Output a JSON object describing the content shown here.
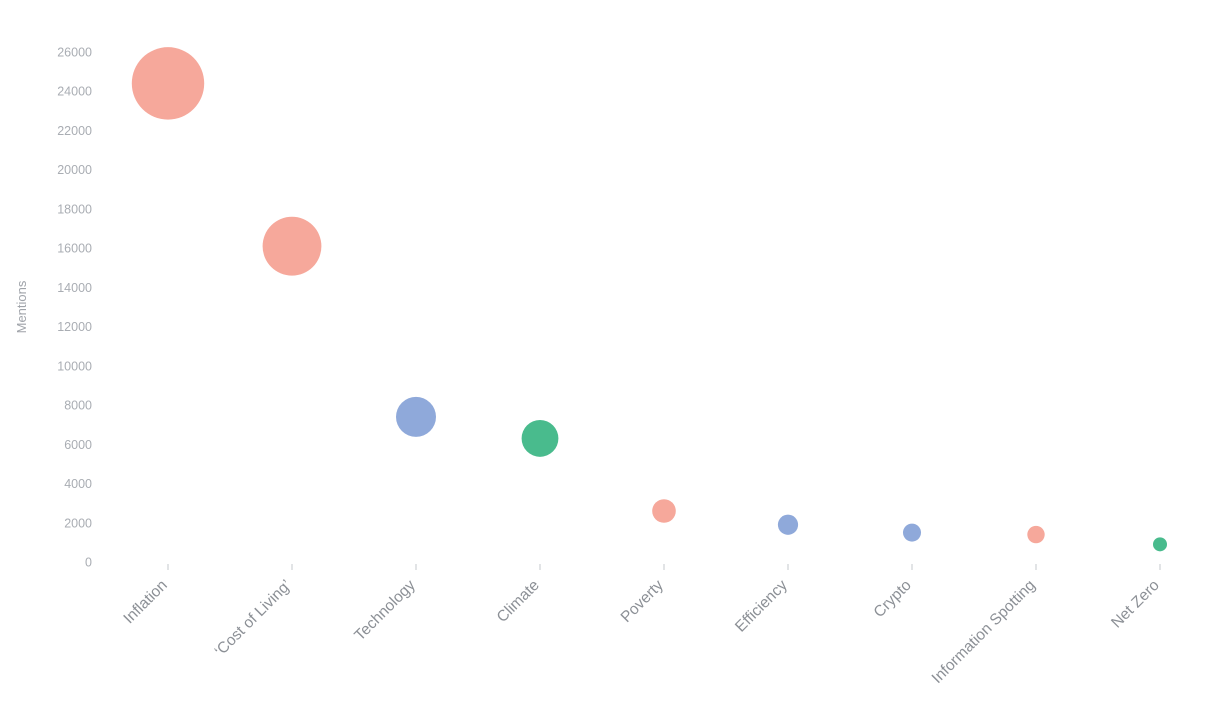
{
  "chart_data": {
    "type": "scatter",
    "subtype": "bubble",
    "title": "",
    "xlabel": "",
    "ylabel": "Mentions",
    "ylim": [
      0,
      26000
    ],
    "ytick_step": 2000,
    "grid": false,
    "legend": "none",
    "categories": [
      "Inflation",
      "‘Cost of Living’",
      "Technology",
      "Climate",
      "Poverty",
      "Efficiency",
      "Crypto",
      "Information Spotting",
      "Net Zero"
    ],
    "values": [
      24400,
      16100,
      7400,
      6300,
      2600,
      1900,
      1500,
      1400,
      900
    ],
    "point_colors": [
      "#F6A89B",
      "#F6A89B",
      "#8FA9DA",
      "#49BB8D",
      "#F6A89B",
      "#8FA9DA",
      "#8FA9DA",
      "#F6A89B",
      "#49BB8D"
    ]
  },
  "style": {
    "ytick_label_color": "#A9ADB3",
    "xtick_label_color": "#8C9096",
    "axis_title_color": "#9FA3A9",
    "tick_mark_color": "#D6D8DB",
    "background": "#ffffff"
  }
}
